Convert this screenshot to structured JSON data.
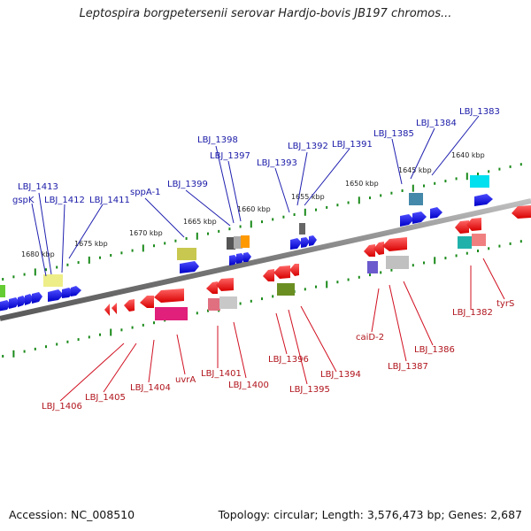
{
  "header": {
    "title": "Leptospira borgpetersenii serovar Hardjo-bovis JB197 chromos..."
  },
  "footer": {
    "accession": "Accession: NC_008510",
    "topology": "Topology: circular; Length: 3,576,473 bp; Genes: 2,687"
  },
  "scale": {
    "kbp_labels": [
      "1680 kbp",
      "1675 kbp",
      "1670 kbp",
      "1665 kbp",
      "1660 kbp",
      "1655 kbp",
      "1650 kbp",
      "1645 kbp",
      "1640 kbp"
    ]
  },
  "genes_top": [
    "gspK",
    "LBJ_1413",
    "LBJ_1412",
    "LBJ_1411",
    "sppA-1",
    "LBJ_1399",
    "LBJ_1398",
    "LBJ_1397",
    "LBJ_1393",
    "LBJ_1392",
    "LBJ_1391",
    "LBJ_1385",
    "LBJ_1384",
    "LBJ_1383"
  ],
  "genes_bottom": [
    "LBJ_1406",
    "LBJ_1405",
    "LBJ_1404",
    "uvrA",
    "LBJ_1401",
    "LBJ_1400",
    "LBJ_1396",
    "LBJ_1395",
    "LBJ_1394",
    "caiD-2",
    "LBJ_1387",
    "LBJ_1386",
    "LBJ_1382",
    "tyrS"
  ],
  "colors": {
    "forward": "#0000e0",
    "reverse": "#ee0000",
    "backbone": "#808080",
    "tick": "#1a8a1a",
    "label_top": "#1a1aa8",
    "label_bottom": "#b0141c"
  }
}
